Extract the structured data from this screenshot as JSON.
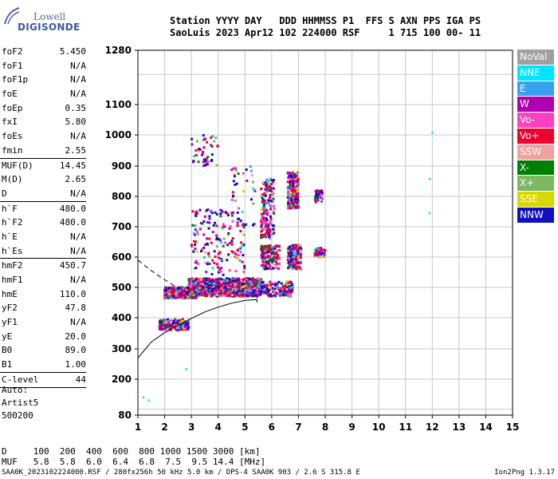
{
  "logo": {
    "line1": "Lowell",
    "line2": "DIGISONDE"
  },
  "header": {
    "line1": "Station YYYY DAY   DDD HHMMSS P1  FFS S AXN PPS IGA PS",
    "line2": "SaoLuis 2023 Apr12 102 224000 RSF     1 715 100 00- 11"
  },
  "params": [
    {
      "key": "foF2",
      "val": "5.450"
    },
    {
      "key": "foF1",
      "val": "N/A"
    },
    {
      "key": "foF1p",
      "val": "N/A"
    },
    {
      "key": "foE",
      "val": "N/A"
    },
    {
      "key": "foEp",
      "val": "0.35"
    },
    {
      "key": "fxI",
      "val": "5.80"
    },
    {
      "key": "foEs",
      "val": "N/A"
    },
    {
      "key": "fmin",
      "val": "2.55"
    },
    {
      "sep": true
    },
    {
      "key": "MUF(D)",
      "val": "14.45"
    },
    {
      "key": "M(D)",
      "val": "2.65"
    },
    {
      "key": "D",
      "val": "N/A"
    },
    {
      "sep": true
    },
    {
      "key": "h`F",
      "val": "480.0"
    },
    {
      "key": "h`F2",
      "val": "480.0"
    },
    {
      "key": "h`E",
      "val": "N/A"
    },
    {
      "key": "h`Es",
      "val": "N/A"
    },
    {
      "sep": true
    },
    {
      "key": "hmF2",
      "val": "450.7"
    },
    {
      "key": "hmF1",
      "val": "N/A"
    },
    {
      "key": "hmE",
      "val": "110.0"
    },
    {
      "key": "yF2",
      "val": "47.8"
    },
    {
      "key": "yF1",
      "val": "N/A"
    },
    {
      "key": "yE",
      "val": "20.0"
    },
    {
      "key": "B0",
      "val": "89.0"
    },
    {
      "key": "B1",
      "val": "1.00"
    },
    {
      "sep": true
    },
    {
      "key": "C-level",
      "val": "44"
    },
    {
      "sep": true
    }
  ],
  "auto": {
    "line1": "Auto:",
    "line2": "Artist5",
    "line3": "500200"
  },
  "muf_table": {
    "d_row": "D     100  200  400  600  800 1000 1500 3000 [km]",
    "muf_row": "MUF   5.8  5.8  6.0  6.4  6.8  7.5  9.5 14.4 [MHz]"
  },
  "footer": {
    "left": "SAA0K_2023102224000.RSF / 280fx256h 50 kHz 5.0 km / DPS-4 SAA0K 903 / 2.6 S 315.8 E",
    "right": "Ion2Png 1.3.17"
  },
  "legend": [
    {
      "label": "NoVal",
      "color": "#a0a0a0"
    },
    {
      "label": "NNE",
      "color": "#00e5ff"
    },
    {
      "label": "E",
      "color": "#3aa0f0"
    },
    {
      "label": "W",
      "color": "#b000b0"
    },
    {
      "label": "Vo-",
      "color": "#ff40c0"
    },
    {
      "label": "Vo+",
      "color": "#ee0030"
    },
    {
      "label": "SSW",
      "color": "#f2a0a0"
    },
    {
      "label": "X-",
      "color": "#008000"
    },
    {
      "label": "X+",
      "color": "#7cb860"
    },
    {
      "label": "SSE",
      "color": "#d8d800"
    },
    {
      "label": "NNW",
      "color": "#1010c0"
    }
  ],
  "chart_data": {
    "type": "scatter",
    "xlim": [
      1,
      15
    ],
    "ylim": [
      80,
      1280
    ],
    "x_ticks": [
      "1",
      "2",
      "3",
      "4",
      "5",
      "6",
      "7",
      "8",
      "9",
      "10",
      "11",
      "12",
      "13",
      "14",
      "15"
    ],
    "y_ticks": [
      "1280",
      "1100",
      "1000",
      "900",
      "800",
      "700",
      "600",
      "500",
      "400",
      "300",
      "200",
      "80"
    ],
    "grid": true,
    "clusters": [
      {
        "x": [
          2.0,
          3.2
        ],
        "y": [
          465,
          500
        ],
        "density": "dense"
      },
      {
        "x": [
          2.9,
          5.6
        ],
        "y": [
          470,
          530
        ],
        "density": "dense"
      },
      {
        "x": [
          3.0,
          5.0
        ],
        "y": [
          540,
          760
        ],
        "density": "medium"
      },
      {
        "x": [
          4.5,
          5.4
        ],
        "y": [
          700,
          900
        ],
        "density": "sparse"
      },
      {
        "x": [
          5.3,
          6.8
        ],
        "y": [
          470,
          520
        ],
        "density": "medium"
      },
      {
        "x": [
          5.6,
          6.1
        ],
        "y": [
          660,
          860
        ],
        "density": "medium"
      },
      {
        "x": [
          5.6,
          6.3
        ],
        "y": [
          560,
          640
        ],
        "density": "medium"
      },
      {
        "x": [
          6.6,
          7.1
        ],
        "y": [
          560,
          640
        ],
        "density": "medium"
      },
      {
        "x": [
          6.6,
          7.0
        ],
        "y": [
          760,
          880
        ],
        "density": "medium"
      },
      {
        "x": [
          7.6,
          8.0
        ],
        "y": [
          600,
          630
        ],
        "density": "sparse"
      },
      {
        "x": [
          7.6,
          7.9
        ],
        "y": [
          780,
          820
        ],
        "density": "sparse"
      },
      {
        "x": [
          1.8,
          2.9
        ],
        "y": [
          360,
          395
        ],
        "density": "medium"
      },
      {
        "x": [
          3.0,
          4.0
        ],
        "y": [
          900,
          1000
        ],
        "density": "sparse"
      }
    ],
    "isolated_points": [
      {
        "x": 12.0,
        "y": 1008
      },
      {
        "x": 11.9,
        "y": 858
      },
      {
        "x": 11.9,
        "y": 745
      },
      {
        "x": 2.8,
        "y": 234
      },
      {
        "x": 1.4,
        "y": 130
      },
      {
        "x": 1.2,
        "y": 140
      }
    ],
    "profile_curve": {
      "x": [
        1.0,
        1.5,
        2.0,
        2.5,
        3.0,
        3.5,
        4.0,
        4.5,
        5.0,
        5.45,
        5.45
      ],
      "y": [
        270,
        322,
        352,
        376,
        398,
        419,
        435,
        448,
        457,
        460,
        450
      ]
    },
    "dashed_trace": {
      "x": [
        1.0,
        1.5,
        2.0,
        2.5,
        2.9
      ],
      "y": [
        590,
        555,
        525,
        498,
        483
      ]
    }
  }
}
